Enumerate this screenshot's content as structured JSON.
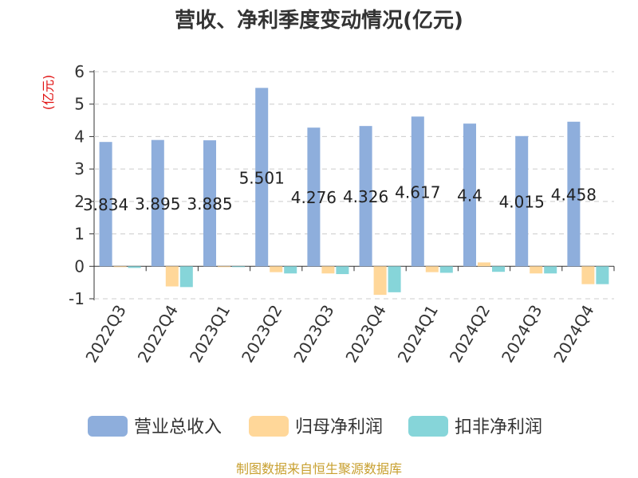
{
  "chart_data": {
    "type": "bar",
    "title": "营收、净利季度变动情况(亿元)",
    "ylabel": "(亿元)",
    "xlabel": "",
    "ylim": [
      -1,
      6
    ],
    "yticks": [
      6,
      5,
      4,
      3,
      2,
      1,
      0,
      -1
    ],
    "grid": true,
    "legend_position": "bottom",
    "categories": [
      "2022Q3",
      "2022Q4",
      "2023Q1",
      "2023Q2",
      "2023Q3",
      "2023Q4",
      "2024Q1",
      "2024Q2",
      "2024Q3",
      "2024Q4"
    ],
    "series": [
      {
        "name": "营业总收入",
        "color": "#8eaedc",
        "values": [
          3.834,
          3.895,
          3.885,
          5.501,
          4.276,
          4.326,
          4.617,
          4.4,
          4.015,
          4.458
        ],
        "labels": [
          "3.834",
          "3.895",
          "3.885",
          "5.501",
          "4.276",
          "4.326",
          "4.617",
          "4.4",
          "4.015",
          "4.458"
        ]
      },
      {
        "name": "归母净利润",
        "color": "#ffd799",
        "values": [
          -0.02,
          -0.62,
          0.0,
          -0.18,
          -0.22,
          -0.88,
          -0.18,
          0.12,
          -0.22,
          -0.55
        ]
      },
      {
        "name": "扣非净利润",
        "color": "#86d5d9",
        "values": [
          -0.05,
          -0.64,
          -0.02,
          -0.22,
          -0.24,
          -0.8,
          -0.2,
          -0.17,
          -0.22,
          -0.55
        ]
      }
    ],
    "source": "制图数据来自恒生聚源数据库"
  }
}
